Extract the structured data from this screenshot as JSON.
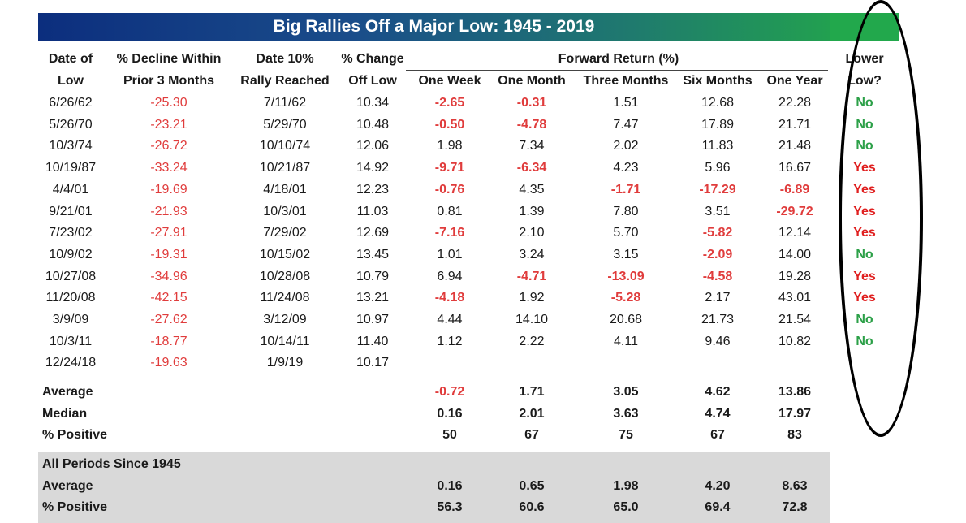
{
  "title": "Big Rallies Off a Major Low: 1945 - 2019",
  "headers": {
    "date_low": [
      "Date of",
      "Low"
    ],
    "decline": [
      "% Decline Within",
      "Prior 3 Months"
    ],
    "date_rally": [
      "Date 10%",
      "Rally Reached"
    ],
    "pct_change": [
      "% Change",
      "Off Low"
    ],
    "forward_return": "Forward Return (%)",
    "one_week": "One Week",
    "one_month": "One Month",
    "three_months": "Three Months",
    "six_months": "Six Months",
    "one_year": "One Year",
    "lower_low": [
      "Lower",
      "Low?"
    ]
  },
  "rows": [
    [
      "6/26/62",
      "-25.30",
      "7/11/62",
      "10.34",
      "-2.65",
      "-0.31",
      "1.51",
      "12.68",
      "22.28",
      "No"
    ],
    [
      "5/26/70",
      "-23.21",
      "5/29/70",
      "10.48",
      "-0.50",
      "-4.78",
      "7.47",
      "17.89",
      "21.71",
      "No"
    ],
    [
      "10/3/74",
      "-26.72",
      "10/10/74",
      "12.06",
      "1.98",
      "7.34",
      "2.02",
      "11.83",
      "21.48",
      "No"
    ],
    [
      "10/19/87",
      "-33.24",
      "10/21/87",
      "14.92",
      "-9.71",
      "-6.34",
      "4.23",
      "5.96",
      "16.67",
      "Yes"
    ],
    [
      "4/4/01",
      "-19.69",
      "4/18/01",
      "12.23",
      "-0.76",
      "4.35",
      "-1.71",
      "-17.29",
      "-6.89",
      "Yes"
    ],
    [
      "9/21/01",
      "-21.93",
      "10/3/01",
      "11.03",
      "0.81",
      "1.39",
      "7.80",
      "3.51",
      "-29.72",
      "Yes"
    ],
    [
      "7/23/02",
      "-27.91",
      "7/29/02",
      "12.69",
      "-7.16",
      "2.10",
      "5.70",
      "-5.82",
      "12.14",
      "Yes"
    ],
    [
      "10/9/02",
      "-19.31",
      "10/15/02",
      "13.45",
      "1.01",
      "3.24",
      "3.15",
      "-2.09",
      "14.00",
      "No"
    ],
    [
      "10/27/08",
      "-34.96",
      "10/28/08",
      "10.79",
      "6.94",
      "-4.71",
      "-13.09",
      "-4.58",
      "19.28",
      "Yes"
    ],
    [
      "11/20/08",
      "-42.15",
      "11/24/08",
      "13.21",
      "-4.18",
      "1.92",
      "-5.28",
      "2.17",
      "43.01",
      "Yes"
    ],
    [
      "3/9/09",
      "-27.62",
      "3/12/09",
      "10.97",
      "4.44",
      "14.10",
      "20.68",
      "21.73",
      "21.54",
      "No"
    ],
    [
      "10/3/11",
      "-18.77",
      "10/14/11",
      "11.40",
      "1.12",
      "2.22",
      "4.11",
      "9.46",
      "10.82",
      "No"
    ],
    [
      "12/24/18",
      "-19.63",
      "1/9/19",
      "10.17",
      "",
      "",
      "",
      "",
      "",
      ""
    ]
  ],
  "summary": [
    [
      "Average",
      "-0.72",
      "1.71",
      "3.05",
      "4.62",
      "13.86"
    ],
    [
      "Median",
      "0.16",
      "2.01",
      "3.63",
      "4.74",
      "17.97"
    ],
    [
      "% Positive",
      "50",
      "67",
      "75",
      "67",
      "83"
    ]
  ],
  "all_periods": {
    "label": "All Periods Since 1945",
    "rows": [
      [
        "Average",
        "0.16",
        "0.65",
        "1.98",
        "4.20",
        "8.63"
      ],
      [
        "% Positive",
        "56.3",
        "60.6",
        "65.0",
        "69.4",
        "72.8"
      ]
    ]
  },
  "colors": {
    "negative": "#e03c3c",
    "no": "#2ca048",
    "yes": "#e02020",
    "band": "#d9d9d9"
  }
}
